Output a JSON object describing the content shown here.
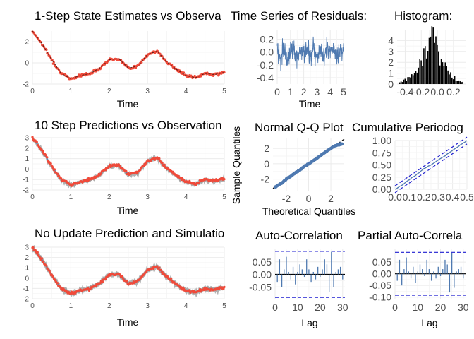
{
  "colors": {
    "state_estimate": "#f04a3a",
    "truth": "#000000",
    "observation": "#9e9e9e",
    "blue_series": "#4e79b0",
    "ci_band": "#1f1fd0",
    "grid": "#ebebeb"
  },
  "chart_data": [
    {
      "id": "p_step",
      "type": "scatter",
      "title": "1-Step State Estimates vs Observa",
      "xlabel": "Time",
      "ylabel": "",
      "xlim": [
        0,
        5
      ],
      "ylim": [
        -2,
        3
      ],
      "xticks": [
        "0",
        "1",
        "2",
        "3",
        "4",
        "5"
      ],
      "yticks": [
        "-2",
        "0",
        "2"
      ],
      "series": [],
      "x": [
        0,
        0.25,
        0.5,
        0.75,
        1.0,
        1.25,
        1.5,
        1.75,
        2.0,
        2.25,
        2.5,
        2.75,
        3.0,
        3.25,
        3.5,
        3.75,
        4.0,
        4.25,
        4.5,
        4.75,
        5.0
      ],
      "y": [
        3.0,
        1.8,
        0.3,
        -1.0,
        -1.5,
        -1.2,
        -1.0,
        -0.5,
        0.3,
        0.4,
        -0.5,
        -0.3,
        0.8,
        1.1,
        0.1,
        -0.6,
        -1.2,
        -1.4,
        -1.0,
        -1.1,
        -0.9
      ]
    },
    {
      "id": "p_resid",
      "type": "line",
      "title": "Time Series of Residuals:",
      "xlabel": "Time",
      "xlim": [
        0,
        5
      ],
      "ylim": [
        -0.5,
        0.35
      ],
      "xticks": [
        "0",
        "1",
        "2",
        "3",
        "4",
        "5"
      ],
      "yticks": [
        "-0.4",
        "-0.2",
        "0.0",
        "0.2"
      ],
      "x": [
        0,
        0.25,
        0.5,
        0.75,
        1.0,
        1.25,
        1.5,
        1.75,
        2.0,
        2.25,
        2.5,
        2.75,
        3.0,
        3.25,
        3.5,
        3.75,
        4.0,
        4.25,
        4.5,
        4.75,
        5.0
      ],
      "y": [
        0.1,
        -0.2,
        0.25,
        -0.3,
        0.05,
        0.3,
        -0.45,
        0.15,
        -0.1,
        0.2,
        -0.25,
        0.3,
        -0.15,
        0.1,
        -0.35,
        0.25,
        -0.05,
        0.2,
        -0.3,
        0.1,
        0.0
      ]
    },
    {
      "id": "p_hist",
      "type": "bar",
      "title": "Histogram:",
      "xlabel": "",
      "xlim": [
        -0.5,
        0.35
      ],
      "ylim": [
        0,
        5
      ],
      "xticks": [
        "-0.4",
        "-0.2",
        "0.0",
        "0.2"
      ],
      "yticks": [
        "0",
        "1",
        "2",
        "3",
        "4"
      ],
      "x": [
        -0.45,
        -0.4,
        -0.35,
        -0.3,
        -0.25,
        -0.2,
        -0.15,
        -0.1,
        -0.05,
        0.0,
        0.05,
        0.1,
        0.15,
        0.2,
        0.25,
        0.3
      ],
      "values": [
        0.2,
        0.4,
        0.6,
        0.8,
        1.4,
        2.0,
        3.2,
        4.2,
        4.8,
        3.6,
        2.4,
        1.6,
        1.0,
        0.6,
        0.3,
        0.2
      ]
    },
    {
      "id": "p_pred10",
      "type": "scatter",
      "title": "10 Step Predictions vs Observation",
      "xlabel": "Time",
      "xlim": [
        0,
        5
      ],
      "ylim": [
        -2,
        3
      ],
      "xticks": [
        "0",
        "1",
        "2",
        "3",
        "4",
        "5"
      ],
      "yticks": [
        "-2",
        "-1",
        "0",
        "1",
        "2",
        "3"
      ],
      "x": [
        0,
        0.25,
        0.5,
        0.75,
        1.0,
        1.25,
        1.5,
        1.75,
        2.0,
        2.25,
        2.5,
        2.75,
        3.0,
        3.25,
        3.5,
        3.75,
        4.0,
        4.25,
        4.5,
        4.75,
        5.0
      ],
      "y": [
        3.0,
        1.8,
        0.3,
        -1.0,
        -1.5,
        -1.2,
        -1.0,
        -0.5,
        0.3,
        0.4,
        -0.5,
        -0.3,
        0.8,
        1.1,
        0.1,
        -0.6,
        -1.2,
        -1.4,
        -1.0,
        -1.1,
        -0.9
      ]
    },
    {
      "id": "p_qq",
      "type": "scatter",
      "title": "Normal Q-Q Plot",
      "xlabel": "Theoretical Quantiles",
      "ylabel": "Sample Quantiles",
      "xlim": [
        -3.2,
        3.2
      ],
      "ylim": [
        -3.5,
        3.3
      ],
      "xticks": [
        "-2",
        "0",
        "2"
      ],
      "yticks": [
        "-2",
        "0",
        "2"
      ],
      "x": [
        -3.0,
        -2.5,
        -2.0,
        -1.5,
        -1.0,
        -0.5,
        0.0,
        0.5,
        1.0,
        1.5,
        2.0,
        2.5,
        3.0
      ],
      "y": [
        -3.0,
        -2.6,
        -2.0,
        -1.5,
        -1.0,
        -0.5,
        0.0,
        0.5,
        1.0,
        1.5,
        2.0,
        2.4,
        2.6
      ]
    },
    {
      "id": "p_cumper",
      "type": "line",
      "title": "Cumulative Periodog",
      "xlabel": "",
      "xlim": [
        0,
        0.5
      ],
      "ylim": [
        0,
        1
      ],
      "xticks": [
        "0.0",
        "0.1",
        "0.2",
        "0.3",
        "0.4",
        "0.5"
      ],
      "yticks": [
        "0.00",
        "0.25",
        "0.50",
        "0.75",
        "1.00"
      ],
      "x": [
        0,
        0.05,
        0.1,
        0.15,
        0.2,
        0.25,
        0.3,
        0.35,
        0.4,
        0.45,
        0.5
      ],
      "y": [
        0,
        0.09,
        0.2,
        0.3,
        0.42,
        0.5,
        0.6,
        0.69,
        0.8,
        0.9,
        1.0
      ]
    },
    {
      "id": "p_sim",
      "type": "scatter",
      "title": "No Update Prediction and Simulatio",
      "xlabel": "Time",
      "xlim": [
        0,
        5
      ],
      "ylim": [
        -2,
        3
      ],
      "xticks": [
        "0",
        "1",
        "2",
        "3",
        "4",
        "5"
      ],
      "yticks": [
        "-2",
        "-1",
        "0",
        "1",
        "2",
        "3"
      ],
      "x": [
        0,
        0.25,
        0.5,
        0.75,
        1.0,
        1.25,
        1.5,
        1.75,
        2.0,
        2.25,
        2.5,
        2.75,
        3.0,
        3.25,
        3.5,
        3.75,
        4.0,
        4.25,
        4.5,
        4.75,
        5.0
      ],
      "y": [
        3.0,
        1.8,
        0.3,
        -1.0,
        -1.5,
        -1.2,
        -1.0,
        -0.5,
        0.3,
        0.4,
        -0.5,
        -0.3,
        0.8,
        1.1,
        0.1,
        -0.6,
        -1.2,
        -1.4,
        -1.0,
        -1.1,
        -0.9
      ]
    },
    {
      "id": "p_acf",
      "type": "bar",
      "title": "Auto-Correlation",
      "xlabel": "Lag",
      "xlim": [
        0,
        31
      ],
      "ylim": [
        -0.1,
        0.1
      ],
      "xticks": [
        "0",
        "10",
        "20",
        "30"
      ],
      "yticks": [
        "-0.05",
        "0.00",
        "0.05"
      ],
      "ci": 0.092,
      "x": [
        1,
        2,
        3,
        4,
        5,
        6,
        7,
        8,
        9,
        10,
        11,
        12,
        13,
        14,
        15,
        16,
        17,
        18,
        19,
        20,
        21,
        22,
        23,
        24,
        25,
        26,
        27,
        28,
        29,
        30
      ],
      "values": [
        -0.03,
        0.06,
        -0.05,
        0.02,
        0.07,
        0.01,
        -0.02,
        0.03,
        -0.04,
        0.01,
        0.04,
        0.02,
        -0.01,
        0.06,
        0.02,
        -0.03,
        0.01,
        -0.02,
        0.03,
        -0.01,
        0.02,
        0.06,
        0.04,
        -0.07,
        0.09,
        -0.05,
        0.01,
        0.02,
        0.03,
        -0.02
      ]
    },
    {
      "id": "p_pacf",
      "type": "bar",
      "title": "Partial Auto-Correla",
      "xlabel": "Lag",
      "xlim": [
        0,
        31
      ],
      "ylim": [
        -0.11,
        0.105
      ],
      "xticks": [
        "0",
        "10",
        "20",
        "30"
      ],
      "yticks": [
        "-0.10",
        "-0.05",
        "0.00",
        "0.05"
      ],
      "ci": 0.092,
      "x": [
        1,
        2,
        3,
        4,
        5,
        6,
        7,
        8,
        9,
        10,
        11,
        12,
        13,
        14,
        15,
        16,
        17,
        18,
        19,
        20,
        21,
        22,
        23,
        24,
        25,
        26,
        27,
        28,
        29,
        30
      ],
      "values": [
        -0.03,
        0.06,
        -0.05,
        0.02,
        0.07,
        0.01,
        -0.02,
        0.03,
        -0.04,
        0.01,
        0.04,
        0.02,
        -0.01,
        0.06,
        0.02,
        -0.03,
        0.01,
        -0.02,
        0.03,
        -0.01,
        0.02,
        0.06,
        0.04,
        -0.08,
        0.09,
        -0.06,
        0.01,
        0.02,
        0.03,
        -0.02
      ]
    }
  ]
}
